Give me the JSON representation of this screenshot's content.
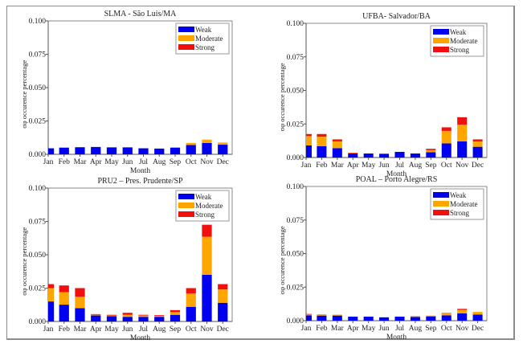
{
  "chart_data": [
    {
      "type": "bar",
      "stacked": true,
      "title": "SLMA  - São Luis/MA",
      "xlabel": "Month",
      "ylabel": "σφ occurence percentage",
      "ylim": [
        0,
        0.1
      ],
      "yticks": [
        "0.000",
        "0.025",
        "0.050",
        "0.075",
        "0.100"
      ],
      "categories": [
        "Jan",
        "Feb",
        "Mar",
        "Apr",
        "May",
        "Jun",
        "Jul",
        "Aug",
        "Sep",
        "Oct",
        "Nov",
        "Dec"
      ],
      "legend_position": "top-right",
      "series": [
        {
          "name": "Weak",
          "values": [
            0.0045,
            0.005,
            0.0053,
            0.0055,
            0.0052,
            0.0052,
            0.0045,
            0.0043,
            0.005,
            0.007,
            0.0085,
            0.0072
          ]
        },
        {
          "name": "Moderate",
          "values": [
            0,
            0,
            0,
            0,
            0,
            0,
            0,
            0,
            0.0003,
            0.0015,
            0.0025,
            0.0016
          ]
        },
        {
          "name": "Strong",
          "values": [
            0,
            0,
            0,
            0,
            0,
            0,
            0,
            0,
            0,
            0,
            0,
            0
          ]
        }
      ]
    },
    {
      "type": "bar",
      "stacked": true,
      "title": "UFBA- Salvador/BA",
      "xlabel": "Month",
      "ylabel": "σφ occurence percentage",
      "ylim": [
        0,
        0.1
      ],
      "yticks": [
        "0.000",
        "0.025",
        "0.050",
        "0.075",
        "0.100"
      ],
      "categories": [
        "Jan",
        "Feb",
        "Mar",
        "Apr",
        "May",
        "Jun",
        "Jul",
        "Aug",
        "Sep",
        "Oct",
        "Nov",
        "Dec"
      ],
      "legend_position": "top-right",
      "series": [
        {
          "name": "Weak",
          "values": [
            0.009,
            0.0085,
            0.007,
            0.003,
            0.003,
            0.0028,
            0.0042,
            0.003,
            0.004,
            0.0105,
            0.012,
            0.008
          ]
        },
        {
          "name": "Moderate",
          "values": [
            0.007,
            0.007,
            0.005,
            0.0003,
            0,
            0,
            0,
            0,
            0.0015,
            0.0093,
            0.0125,
            0.004
          ]
        },
        {
          "name": "Strong",
          "values": [
            0.0015,
            0.002,
            0.0015,
            0.0002,
            0,
            0,
            0,
            0,
            0.001,
            0.0027,
            0.0055,
            0.0015
          ]
        }
      ]
    },
    {
      "type": "bar",
      "stacked": true,
      "title": "PRU2 – Pres. Prudente/SP",
      "xlabel": "Month",
      "ylabel": "σφ occurence percentage",
      "ylim": [
        0,
        0.1
      ],
      "yticks": [
        "0.000",
        "0.025",
        "0.050",
        "0.075",
        "0.100"
      ],
      "categories": [
        "Jan",
        "Feb",
        "Mar",
        "Apr",
        "May",
        "Jun",
        "Jul",
        "Aug",
        "Sep",
        "Oct",
        "Nov",
        "Dec"
      ],
      "legend_position": "top-right",
      "series": [
        {
          "name": "Weak",
          "values": [
            0.015,
            0.0126,
            0.01,
            0.0045,
            0.004,
            0.0035,
            0.0035,
            0.0035,
            0.005,
            0.011,
            0.035,
            0.014
          ]
        },
        {
          "name": "Moderate",
          "values": [
            0.01,
            0.0094,
            0.0086,
            0.0005,
            0.0005,
            0.0015,
            0.001,
            0.0008,
            0.002,
            0.01,
            0.0285,
            0.01
          ]
        },
        {
          "name": "Strong",
          "values": [
            0.003,
            0.005,
            0.0064,
            0.0005,
            0.0005,
            0.0015,
            0.0005,
            0.0005,
            0.0015,
            0.004,
            0.009,
            0.004
          ]
        }
      ]
    },
    {
      "type": "bar",
      "stacked": true,
      "title": "POAL – Porto Alegre/RS",
      "xlabel": "Month",
      "ylabel": "σφ occurence percentage",
      "ylim": [
        0,
        0.1
      ],
      "yticks": [
        "0.000",
        "0.025",
        "0.050",
        "0.075",
        "0.100"
      ],
      "categories": [
        "Jan",
        "Feb",
        "Mar",
        "Apr",
        "May",
        "Jun",
        "Jul",
        "Aug",
        "Sep",
        "Oct",
        "Nov",
        "Dec"
      ],
      "legend_position": "top-right",
      "series": [
        {
          "name": "Weak",
          "values": [
            0.004,
            0.0038,
            0.0038,
            0.003,
            0.003,
            0.0025,
            0.003,
            0.0028,
            0.0032,
            0.004,
            0.0055,
            0.0045
          ]
        },
        {
          "name": "Moderate",
          "values": [
            0.0008,
            0.001,
            0.0007,
            0,
            0,
            0,
            0,
            0.0007,
            0.0006,
            0.002,
            0.0025,
            0.002
          ]
        },
        {
          "name": "Strong",
          "values": [
            0.0002,
            0,
            0,
            0,
            0,
            0,
            0,
            0,
            0,
            0,
            0.0008,
            0
          ]
        }
      ]
    }
  ],
  "colors": {
    "Weak": "#0000f0",
    "Moderate": "#ffa500",
    "Strong": "#f01010"
  }
}
